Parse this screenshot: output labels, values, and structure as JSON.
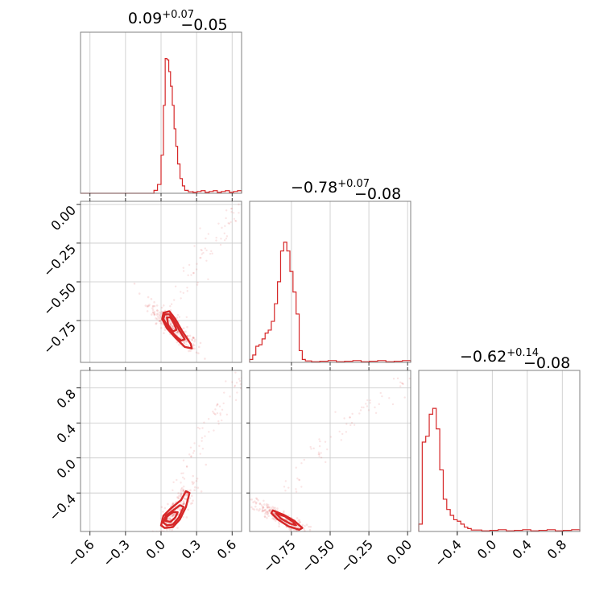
{
  "chart_data": {
    "type": "corner",
    "color": "#d62728",
    "parameters": [
      {
        "title_value": "0.09",
        "title_upper": "+0.07",
        "title_lower": "−0.05",
        "range": [
          -0.68,
          0.68
        ],
        "ticks": [
          -0.6,
          -0.3,
          0.0,
          0.3,
          0.6
        ],
        "tick_labels": [
          "−0.6",
          "−0.3",
          "0.0",
          "0.3",
          "0.6"
        ],
        "hist": {
          "edges": [
            -0.06,
            -0.03,
            0.0,
            0.02,
            0.035,
            0.05,
            0.065,
            0.08,
            0.095,
            0.11,
            0.125,
            0.14,
            0.16,
            0.18,
            0.2,
            0.23,
            0.27
          ],
          "counts": [
            0.02,
            0.06,
            0.26,
            0.6,
            0.92,
            0.91,
            0.83,
            0.73,
            0.6,
            0.44,
            0.32,
            0.2,
            0.1,
            0.05,
            0.02,
            0.01
          ]
        },
        "tail": {
          "from": 0.27,
          "to": 0.68,
          "level": 0.015
        }
      },
      {
        "title_value": "−0.78",
        "title_upper": "+0.07",
        "title_lower": "−0.08",
        "range": [
          -1.02,
          0.02
        ],
        "ticks": [
          -0.75,
          -0.5,
          -0.25,
          0.0
        ],
        "tick_labels": [
          "−0.75",
          "−0.50",
          "−0.25",
          "0.00"
        ],
        "y_tick_labels": [
          "0.00",
          "−0.25",
          "−0.50",
          "−0.75"
        ],
        "y_ticks": [
          0.0,
          -0.25,
          -0.5,
          -0.75
        ],
        "hist": {
          "edges": [
            -1.02,
            -1.0,
            -0.98,
            -0.96,
            -0.94,
            -0.92,
            -0.9,
            -0.88,
            -0.86,
            -0.84,
            -0.82,
            -0.8,
            -0.78,
            -0.76,
            -0.74,
            -0.72,
            -0.7,
            -0.68,
            -0.66,
            -0.64,
            -0.62
          ],
          "counts": [
            0.02,
            0.05,
            0.11,
            0.12,
            0.16,
            0.2,
            0.22,
            0.28,
            0.4,
            0.55,
            0.76,
            0.82,
            0.76,
            0.62,
            0.48,
            0.33,
            0.08,
            0.02,
            0.01,
            0.01
          ]
        },
        "tail": {
          "from": -0.62,
          "to": 0.02,
          "level": 0.01
        }
      },
      {
        "title_value": "−0.62",
        "title_upper": "+0.14",
        "title_lower": "−0.08",
        "range": [
          -0.84,
          1.0
        ],
        "ticks": [
          -0.4,
          0.0,
          0.4,
          0.8
        ],
        "tick_labels": [
          "−0.4",
          "0.0",
          "0.4",
          "0.8"
        ],
        "hist": {
          "edges": [
            -0.84,
            -0.8,
            -0.76,
            -0.72,
            -0.68,
            -0.64,
            -0.6,
            -0.56,
            -0.52,
            -0.48,
            -0.44,
            -0.4,
            -0.36,
            -0.32,
            -0.28,
            -0.24,
            -0.2,
            -0.16,
            -0.12
          ],
          "counts": [
            0.05,
            0.61,
            0.65,
            0.8,
            0.84,
            0.7,
            0.42,
            0.22,
            0.15,
            0.11,
            0.08,
            0.07,
            0.05,
            0.03,
            0.02,
            0.01,
            0.01,
            0.01
          ]
        },
        "tail": {
          "from": -0.12,
          "to": 1.0,
          "level": 0.01
        }
      }
    ],
    "pairs": [
      {
        "x_param": 0,
        "y_param": 1,
        "core": {
          "center": [
            0.1,
            -0.79
          ],
          "principal_axis": [
            0.11,
            -0.08
          ],
          "width": 0.03
        },
        "contours": [
          [
            [
              0.02,
              -0.7
            ],
            [
              0.07,
              -0.69
            ],
            [
              0.12,
              -0.74
            ],
            [
              0.18,
              -0.82
            ],
            [
              0.25,
              -0.9
            ],
            [
              0.26,
              -0.93
            ],
            [
              0.2,
              -0.92
            ],
            [
              0.12,
              -0.86
            ],
            [
              0.05,
              -0.8
            ],
            [
              0.01,
              -0.74
            ]
          ],
          [
            [
              0.03,
              -0.71
            ],
            [
              0.07,
              -0.71
            ],
            [
              0.11,
              -0.75
            ],
            [
              0.16,
              -0.82
            ],
            [
              0.2,
              -0.87
            ],
            [
              0.17,
              -0.88
            ],
            [
              0.11,
              -0.84
            ],
            [
              0.05,
              -0.78
            ],
            [
              0.02,
              -0.74
            ]
          ],
          [
            [
              0.05,
              -0.73
            ],
            [
              0.08,
              -0.73
            ],
            [
              0.11,
              -0.77
            ],
            [
              0.13,
              -0.81
            ],
            [
              0.1,
              -0.82
            ],
            [
              0.06,
              -0.78
            ]
          ]
        ]
      },
      {
        "x_param": 0,
        "y_param": 2,
        "core": {
          "center": [
            0.1,
            -0.66
          ],
          "principal_axis": [
            0.09,
            0.2
          ],
          "width": 0.04
        },
        "contours": [
          [
            [
              0.0,
              -0.77
            ],
            [
              0.03,
              -0.8
            ],
            [
              0.1,
              -0.79
            ],
            [
              0.16,
              -0.7
            ],
            [
              0.21,
              -0.56
            ],
            [
              0.24,
              -0.4
            ],
            [
              0.21,
              -0.38
            ],
            [
              0.17,
              -0.48
            ],
            [
              0.08,
              -0.58
            ],
            [
              0.02,
              -0.66
            ]
          ],
          [
            [
              0.02,
              -0.74
            ],
            [
              0.05,
              -0.77
            ],
            [
              0.1,
              -0.76
            ],
            [
              0.15,
              -0.68
            ],
            [
              0.19,
              -0.56
            ],
            [
              0.16,
              -0.54
            ],
            [
              0.1,
              -0.6
            ],
            [
              0.04,
              -0.66
            ]
          ],
          [
            [
              0.04,
              -0.72
            ],
            [
              0.08,
              -0.73
            ],
            [
              0.12,
              -0.68
            ],
            [
              0.14,
              -0.62
            ],
            [
              0.1,
              -0.62
            ],
            [
              0.05,
              -0.67
            ]
          ]
        ]
      },
      {
        "x_param": 1,
        "y_param": 2,
        "core": {
          "center": [
            -0.82,
            -0.68
          ],
          "principal_axis": [
            0.1,
            -0.1
          ],
          "width": 0.03
        },
        "contours": [
          [
            [
              -0.87,
              -0.6
            ],
            [
              -0.8,
              -0.65
            ],
            [
              -0.73,
              -0.72
            ],
            [
              -0.68,
              -0.8
            ],
            [
              -0.7,
              -0.82
            ],
            [
              -0.77,
              -0.78
            ],
            [
              -0.84,
              -0.7
            ],
            [
              -0.88,
              -0.63
            ]
          ],
          [
            [
              -0.85,
              -0.63
            ],
            [
              -0.79,
              -0.67
            ],
            [
              -0.74,
              -0.73
            ],
            [
              -0.72,
              -0.77
            ],
            [
              -0.76,
              -0.75
            ],
            [
              -0.82,
              -0.69
            ]
          ]
        ]
      }
    ]
  }
}
